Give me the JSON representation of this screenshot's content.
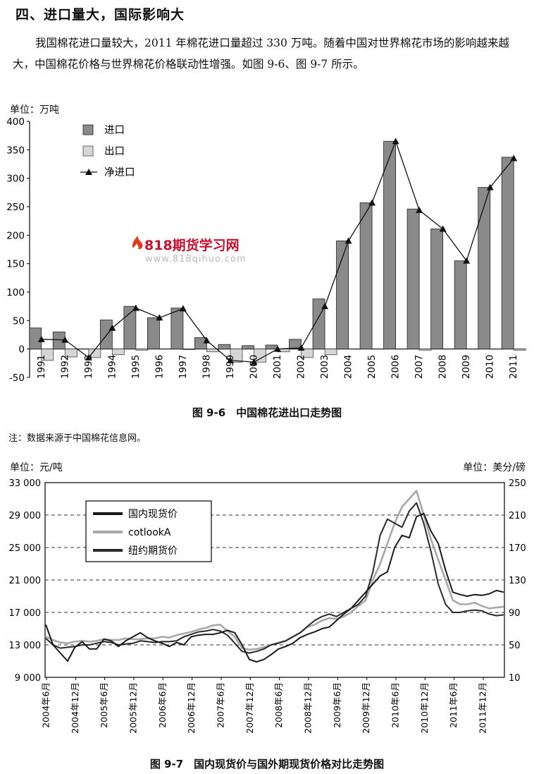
{
  "section": {
    "heading": "四、进口量大，国际影响大",
    "paragraph": "我国棉花进口量较大，2011 年棉花进口量超过 330 万吨。随着中国对世界棉花市场的影响越来越大，中国棉花价格与世界棉花价格联动性增强。如图 9-6、图 9-7 所示。"
  },
  "watermark": {
    "title": "818期货学习网",
    "url": "www.818qihuo.com"
  },
  "figure1": {
    "unit_label": "单位：万吨",
    "caption": "图 9-6　中国棉花进出口走势图",
    "note": "注：数据来源于中国棉花信息网。"
  },
  "figure2": {
    "left_unit_label": "单位：元/吨",
    "right_unit_label": "单位：美分/磅",
    "caption": "图 9-7　国内现货价与国外期现货价格对比走势图"
  },
  "chart_data": [
    {
      "type": "bar",
      "categories": [
        "1991",
        "1992",
        "1993",
        "1994",
        "1995",
        "1996",
        "1997",
        "1998",
        "1999",
        "2000",
        "2001",
        "2002",
        "2003",
        "2004",
        "2005",
        "2006",
        "2007",
        "2008",
        "2009",
        "2010",
        "2011"
      ],
      "series": [
        {
          "name": "进口",
          "kind": "bar",
          "color": "#8a8a8a",
          "values": [
            37,
            30,
            0,
            51,
            75,
            55,
            72,
            20,
            8,
            6,
            7,
            17,
            88,
            190,
            257,
            365,
            246,
            211,
            155,
            284,
            337
          ]
        },
        {
          "name": "出口",
          "kind": "bar",
          "color": "#d6d6d6",
          "values": [
            -20,
            -14,
            -15,
            -10,
            -2,
            0,
            -1,
            -5,
            -23,
            -23,
            -5,
            -15,
            -10,
            0,
            0,
            0,
            -2,
            0,
            0,
            0,
            -2
          ]
        },
        {
          "name": "净进口",
          "kind": "line",
          "marker": "triangle",
          "color": "#111111",
          "values": [
            17,
            16,
            -15,
            37,
            72,
            55,
            71,
            15,
            -20,
            -23,
            0,
            2,
            75,
            190,
            257,
            365,
            244,
            211,
            155,
            284,
            335
          ]
        }
      ],
      "ylim": [
        -50,
        400
      ],
      "yticks": [
        "400",
        "350",
        "300",
        "250",
        "200",
        "150",
        "100",
        "50",
        "0",
        "-50"
      ],
      "legend_position": "top-left",
      "grid": false
    },
    {
      "type": "line",
      "x_ticks": [
        "2004年6月",
        "2004年12月",
        "2005年6月",
        "2005年12月",
        "2006年6月",
        "2006年12月",
        "2007年6月",
        "2007年12月",
        "2008年6月",
        "2008年12月",
        "2009年6月",
        "2009年12月",
        "2010年6月",
        "2010年12月",
        "2011年6月",
        "2011年12月"
      ],
      "left_axis": {
        "range": [
          9000,
          33000
        ],
        "ticks": [
          "33 000",
          "29 000",
          "25 000",
          "21 000",
          "17 000",
          "13 000",
          "9 000"
        ]
      },
      "right_axis": {
        "range": [
          10,
          250
        ],
        "ticks": [
          "250",
          "210",
          "170",
          "130",
          "90",
          "50",
          "10"
        ]
      },
      "grid": "horizontal-dashed",
      "legend_position": "top-left",
      "series": [
        {
          "name": "国内现货价",
          "axis": "left",
          "color": "#1a1a1a",
          "values": [
            15500,
            13000,
            12000,
            11000,
            12700,
            13400,
            12500,
            12500,
            13700,
            13500,
            12800,
            13500,
            14000,
            14500,
            13900,
            13500,
            13200,
            12800,
            13300,
            13000,
            14000,
            14200,
            14300,
            14300,
            14500,
            14800,
            14500,
            13000,
            11200,
            10900,
            11200,
            11800,
            12500,
            12800,
            13200,
            13900,
            14300,
            14600,
            15000,
            15200,
            16000,
            16800,
            17500,
            18500,
            19500,
            20500,
            21500,
            22000,
            25000,
            26500,
            26200,
            28800,
            29200,
            27000,
            25500,
            22200,
            19500,
            19200,
            19000,
            19200,
            19100,
            19300,
            19700,
            19500
          ]
        },
        {
          "name": "cotlookA",
          "axis": "right",
          "color": "#a8a8a8",
          "values": [
            60,
            56,
            53,
            52,
            54,
            55,
            54,
            55,
            57,
            56,
            56,
            58,
            57,
            57,
            58,
            58,
            60,
            59,
            62,
            64,
            66,
            69,
            71,
            74,
            75,
            67,
            60,
            46,
            44,
            45,
            47,
            50,
            53,
            55,
            60,
            65,
            72,
            75,
            80,
            83,
            82,
            85,
            90,
            98,
            105,
            130,
            150,
            175,
            200,
            220,
            230,
            240,
            210,
            180,
            155,
            130,
            105,
            100,
            100,
            102,
            98,
            95,
            96,
            97
          ]
        },
        {
          "name": "纽约期货价",
          "axis": "right",
          "color": "#2a2a2a",
          "values": [
            58,
            50,
            46,
            47,
            48,
            50,
            50,
            52,
            54,
            53,
            50,
            51,
            52,
            55,
            54,
            53,
            54,
            54,
            55,
            60,
            63,
            66,
            67,
            69,
            67,
            62,
            52,
            42,
            40,
            42,
            45,
            50,
            52,
            55,
            60,
            65,
            73,
            80,
            85,
            88,
            85,
            90,
            95,
            100,
            110,
            140,
            185,
            205,
            200,
            195,
            215,
            225,
            200,
            165,
            125,
            100,
            90,
            90,
            92,
            93,
            92,
            88,
            86,
            87
          ]
        }
      ]
    }
  ]
}
